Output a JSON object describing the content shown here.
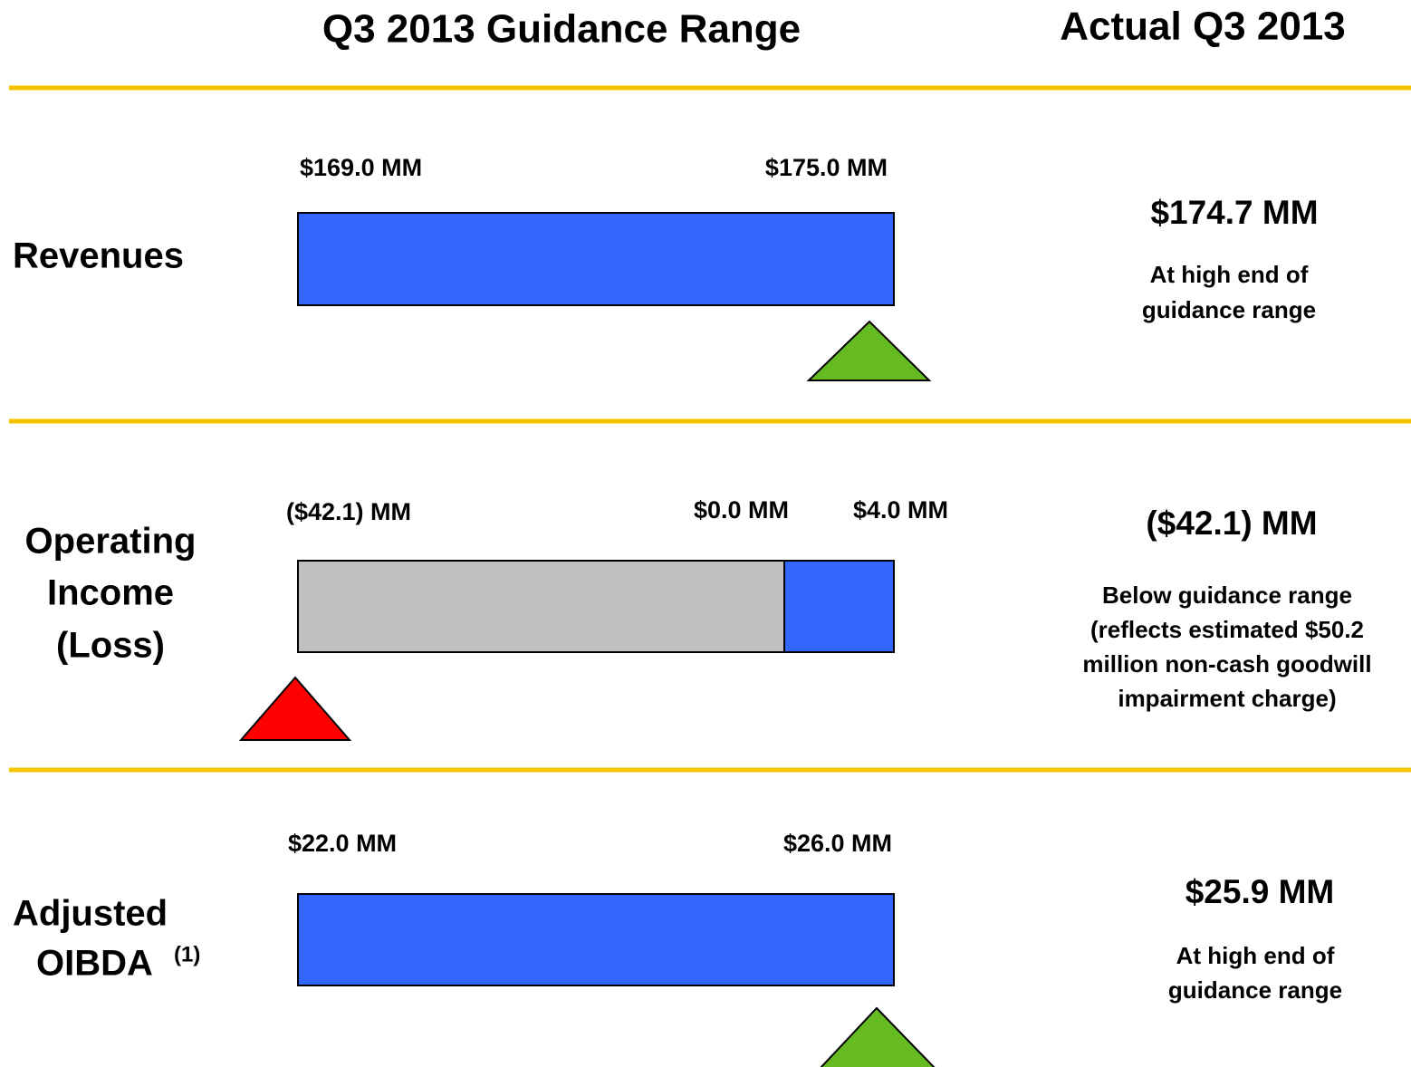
{
  "header": {
    "range_title": "Q3 2013 Guidance Range",
    "actual_title": "Actual Q3 2013"
  },
  "rows": [
    {
      "label": [
        "Revenues"
      ],
      "range_labels": [
        "$169.0 MM",
        "$175.0 MM"
      ],
      "actual": "$174.7 MM",
      "note": [
        "At high end of",
        "guidance range"
      ]
    },
    {
      "label": [
        "Operating",
        "Income",
        "(Loss)"
      ],
      "range_labels": [
        "($42.1) MM",
        "$0.0 MM",
        "$4.0 MM"
      ],
      "actual": "($42.1) MM",
      "note": [
        "Below guidance range",
        "(reflects estimated $50.2",
        "million non-cash goodwill",
        "impairment charge)"
      ]
    },
    {
      "label": [
        "Adjusted",
        "OIBDA"
      ],
      "label_superscript": "(1)",
      "range_labels": [
        "$22.0 MM",
        "$26.0 MM"
      ],
      "actual": "$25.9 MM",
      "note": [
        "At high end of",
        "guidance range"
      ]
    }
  ]
}
